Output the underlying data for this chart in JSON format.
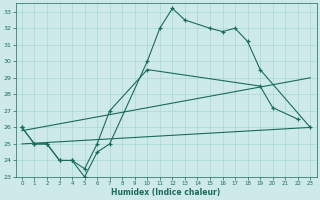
{
  "xlabel": "Humidex (Indice chaleur)",
  "background_color": "#ceeae8",
  "grid_color": "#a8d8d8",
  "line_color": "#1a6b5a",
  "xlim": [
    -0.5,
    23.5
  ],
  "ylim": [
    23,
    33.5
  ],
  "xticks": [
    0,
    1,
    2,
    3,
    4,
    5,
    6,
    7,
    8,
    9,
    10,
    11,
    12,
    13,
    14,
    15,
    16,
    17,
    18,
    19,
    20,
    21,
    22,
    23
  ],
  "yticks": [
    23,
    24,
    25,
    26,
    27,
    28,
    29,
    30,
    31,
    32,
    33
  ],
  "series1_x": [
    0,
    1,
    2,
    3,
    4,
    5,
    6,
    7,
    10,
    11,
    12,
    13,
    15,
    16,
    17,
    18,
    19,
    23
  ],
  "series1_y": [
    26.0,
    25.0,
    25.0,
    24.0,
    24.0,
    23.0,
    24.5,
    25.0,
    30.0,
    32.0,
    33.2,
    32.5,
    32.0,
    31.8,
    32.0,
    31.2,
    29.5,
    26.0
  ],
  "series2_x": [
    0,
    1,
    2,
    3,
    4,
    5,
    6,
    7,
    10,
    19,
    20,
    22
  ],
  "series2_y": [
    26.0,
    25.0,
    25.0,
    24.0,
    24.0,
    23.5,
    25.0,
    27.0,
    29.5,
    28.5,
    27.2,
    26.5
  ],
  "series3_x": [
    0,
    23
  ],
  "series3_y": [
    25.8,
    29.0
  ],
  "series4_x": [
    0,
    23
  ],
  "series4_y": [
    25.0,
    26.0
  ]
}
